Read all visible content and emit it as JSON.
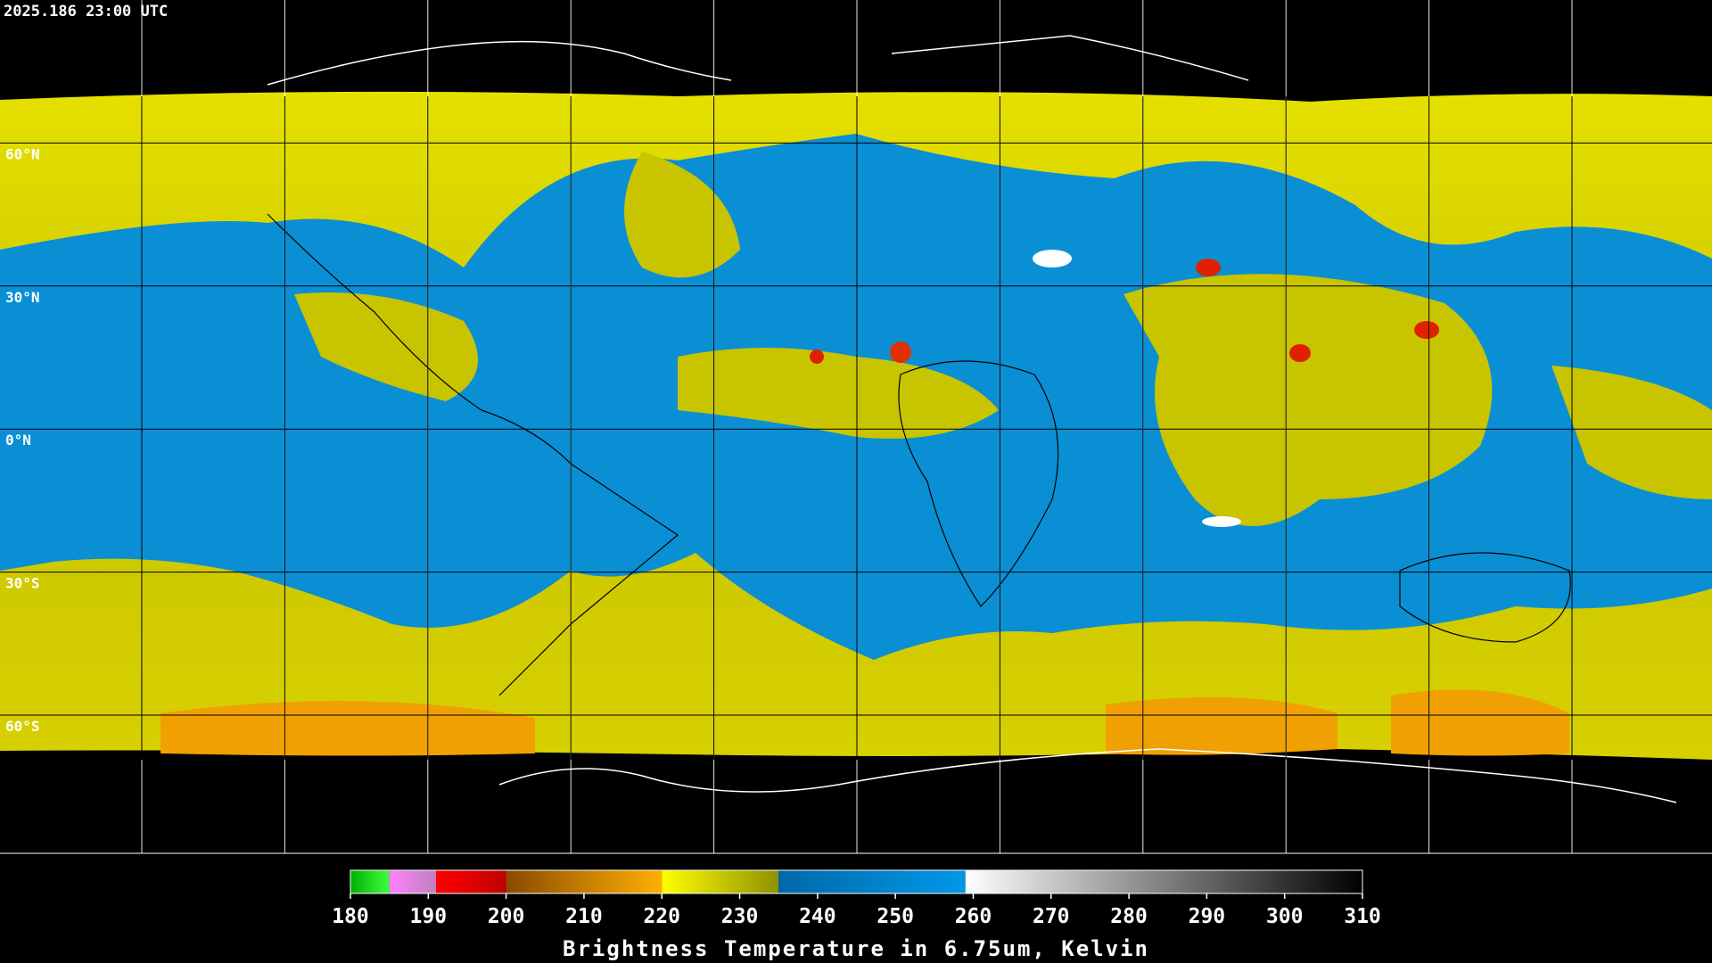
{
  "header": {
    "timestamp": "2025.186 23:00 UTC"
  },
  "map": {
    "lat_labels": [
      "60°N",
      "30°N",
      "0°N",
      "30°S",
      "60°S"
    ]
  },
  "colorbar": {
    "min": 180,
    "max": 310,
    "ticks": [
      180,
      190,
      200,
      210,
      220,
      230,
      240,
      250,
      260,
      270,
      280,
      290,
      300,
      310
    ],
    "segments": [
      {
        "from": 180,
        "to": 185,
        "start_color": "#00b000",
        "end_color": "#40ff40"
      },
      {
        "from": 185,
        "to": 191,
        "start_color": "#ff80ff",
        "end_color": "#c080c0"
      },
      {
        "from": 191,
        "to": 200,
        "start_color": "#ff0000",
        "end_color": "#c00000"
      },
      {
        "from": 200,
        "to": 220,
        "start_color": "#8a4a00",
        "end_color": "#ffb000"
      },
      {
        "from": 220,
        "to": 235,
        "start_color": "#ffff00",
        "end_color": "#909000"
      },
      {
        "from": 235,
        "to": 259,
        "start_color": "#0068a8",
        "end_color": "#0098e8"
      },
      {
        "from": 259,
        "to": 310,
        "start_color": "#ffffff",
        "end_color": "#000000"
      }
    ],
    "title": "Brightness Temperature in 6.75um, Kelvin"
  }
}
